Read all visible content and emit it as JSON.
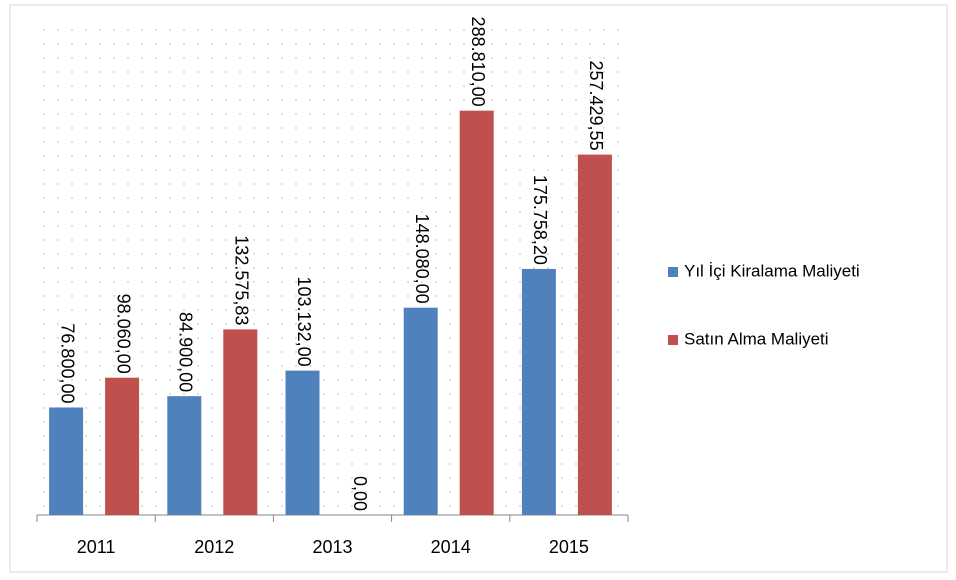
{
  "chart_data": {
    "type": "bar",
    "categories": [
      "2011",
      "2012",
      "2013",
      "2014",
      "2015"
    ],
    "series": [
      {
        "name": "Yıl İçi Kiralama Maliyeti",
        "color": "#4f81bd",
        "values": [
          76800,
          84900,
          103132,
          148080,
          175758.2
        ],
        "value_labels": [
          "76.800,00",
          "84.900,00",
          "103.132,00",
          "148.080,00",
          "175.758,20"
        ]
      },
      {
        "name": "Satın Alma Maliyeti",
        "color": "#c0504d",
        "values": [
          98060,
          132575.83,
          0,
          288810,
          257429.55
        ],
        "value_labels": [
          "98.060,00",
          "132.575,83",
          "0,00",
          "288.810,00",
          "257.429,55"
        ]
      }
    ],
    "ylim": [
      0,
      350000
    ],
    "legend": "right"
  }
}
